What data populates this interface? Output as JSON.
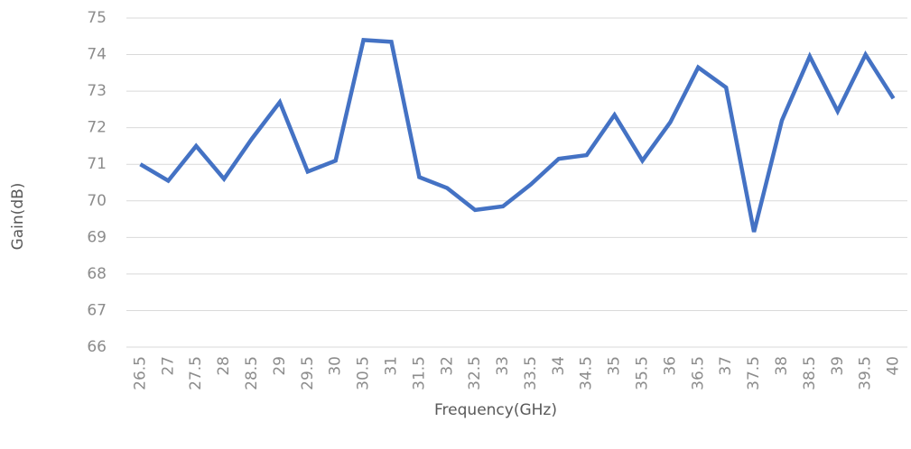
{
  "chart_data": {
    "type": "line",
    "x_label": "Frequency(GHz)",
    "y_label": "Gain(dB)",
    "categories": [
      "26.5",
      "27",
      "27.5",
      "28",
      "28.5",
      "29",
      "29.5",
      "30",
      "30.5",
      "31",
      "31.5",
      "32",
      "32.5",
      "33",
      "33.5",
      "34",
      "34.5",
      "35",
      "35.5",
      "36",
      "36.5",
      "37",
      "37.5",
      "38",
      "38.5",
      "39",
      "39.5",
      "40"
    ],
    "series": [
      {
        "name": "Gain",
        "color": "#4472c4",
        "values": [
          71.0,
          70.55,
          71.5,
          70.6,
          71.7,
          72.7,
          70.8,
          71.1,
          74.4,
          74.35,
          70.65,
          70.35,
          69.75,
          69.85,
          70.45,
          71.15,
          71.25,
          72.35,
          71.1,
          72.15,
          73.65,
          73.1,
          69.15,
          72.2,
          73.95,
          72.45,
          74.0,
          72.8
        ]
      }
    ],
    "ylim": [
      66,
      75
    ],
    "yticks": [
      66,
      67,
      68,
      69,
      70,
      71,
      72,
      73,
      74,
      75
    ],
    "grid": true
  }
}
